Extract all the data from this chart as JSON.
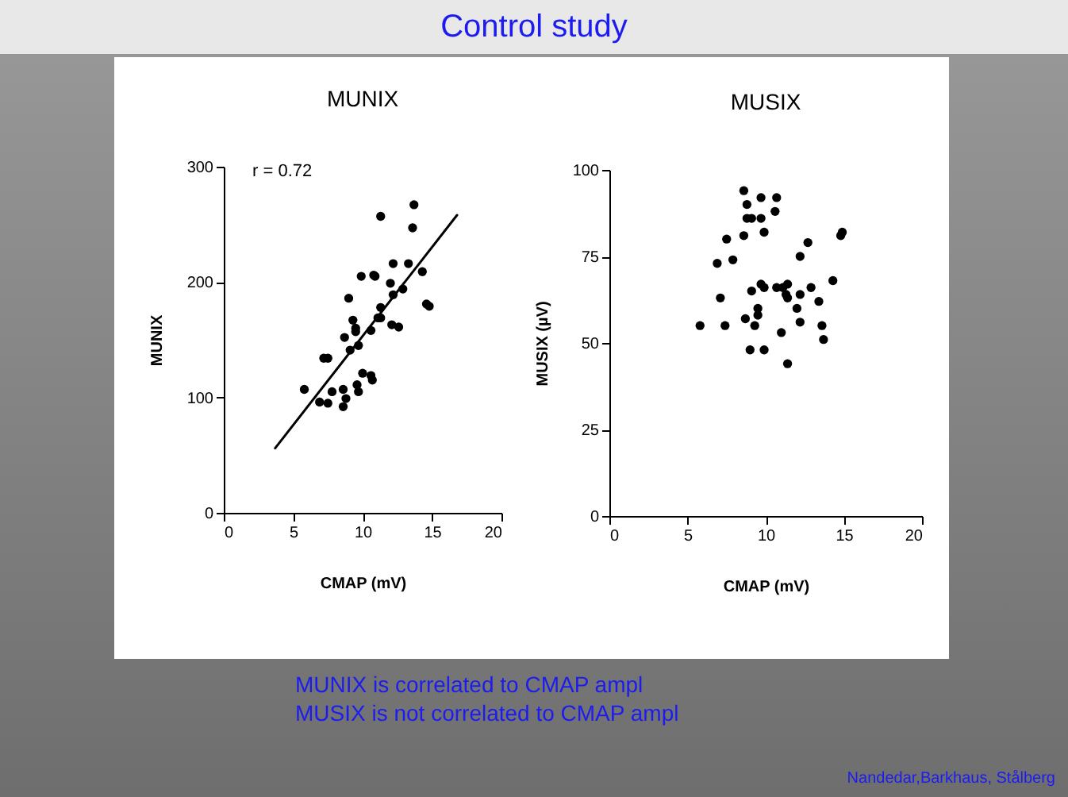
{
  "chart_data": [
    {
      "type": "scatter",
      "title": "MUNIX",
      "xlabel": "CMAP (mV)",
      "ylabel": "MUNIX",
      "xlim": [
        0,
        20
      ],
      "xticks": [
        0,
        5,
        10,
        15,
        20
      ],
      "ylim": [
        0,
        300
      ],
      "yticks": [
        0,
        100,
        200,
        300
      ],
      "grid": false,
      "marker": "circle",
      "annotations": [
        "r = 0.72"
      ],
      "series": [
        {
          "type": "scatter",
          "color": "#000000",
          "x": [
            5.8,
            6.9,
            7.2,
            7.5,
            7.5,
            7.8,
            8.7,
            8.6,
            8.8,
            8.6,
            9.0,
            9.1,
            9.3,
            9.5,
            9.5,
            9.7,
            9.9,
            9.6,
            9.7,
            10.0,
            10.6,
            10.7,
            10.6,
            10.8,
            10.9,
            11.3,
            11.1,
            11.3,
            11.3,
            12.0,
            12.2,
            12.2,
            12.1,
            12.6,
            12.9,
            13.3,
            13.6,
            13.7,
            14.3,
            14.6,
            14.8
          ],
          "values": [
            107,
            96,
            134,
            134,
            95,
            105,
            152,
            107,
            99,
            92,
            186,
            141,
            167,
            160,
            157,
            145,
            205,
            111,
            105,
            121,
            119,
            115,
            158,
            206,
            205,
            257,
            169,
            178,
            169,
            199,
            189,
            216,
            163,
            161,
            194,
            216,
            247,
            267,
            209,
            181,
            179
          ]
        },
        {
          "type": "line",
          "color": "#000000",
          "line_style": "solid",
          "marker": "none",
          "x": [
            3.7,
            16.8
          ],
          "values": [
            56,
            258
          ]
        }
      ]
    },
    {
      "type": "scatter",
      "title": "MUSIX",
      "xlabel": "CMAP (mV)",
      "ylabel": "MUSIX (µV)",
      "xlim": [
        0,
        20
      ],
      "xticks": [
        0,
        5,
        10,
        15,
        20
      ],
      "ylim": [
        0,
        100
      ],
      "yticks": [
        0,
        25,
        50,
        75,
        100
      ],
      "grid": false,
      "marker": "circle",
      "series": [
        {
          "type": "scatter",
          "color": "#000000",
          "x": [
            5.8,
            6.9,
            7.1,
            7.4,
            7.5,
            7.9,
            8.6,
            8.6,
            8.8,
            8.8,
            9.1,
            8.7,
            9.0,
            9.1,
            9.3,
            9.5,
            9.5,
            9.7,
            9.7,
            9.7,
            9.9,
            9.9,
            9.9,
            10.6,
            10.7,
            10.7,
            11.0,
            11.1,
            11.4,
            11.3,
            11.4,
            11.4,
            12.0,
            12.2,
            12.2,
            12.2,
            12.7,
            12.9,
            13.4,
            13.6,
            13.7,
            14.3,
            14.8,
            14.9
          ],
          "values": [
            55,
            73,
            63,
            55,
            80,
            74,
            94,
            81,
            90,
            86,
            86,
            57,
            48,
            65,
            55,
            60,
            58,
            92,
            86,
            67,
            66,
            82,
            48,
            88,
            92,
            66,
            53,
            66,
            67,
            64,
            63,
            44,
            60,
            75,
            64,
            56,
            79,
            66,
            62,
            55,
            51,
            68,
            81,
            82
          ]
        }
      ]
    },
    {
      "type": "other",
      "title": "Control study",
      "annotations": [
        "MUNIX is correlated to CMAP ampl",
        "MUSIX is not correlated to CMAP ampl",
        "Nandedar,Barkhaus,  Stålberg"
      ]
    }
  ]
}
